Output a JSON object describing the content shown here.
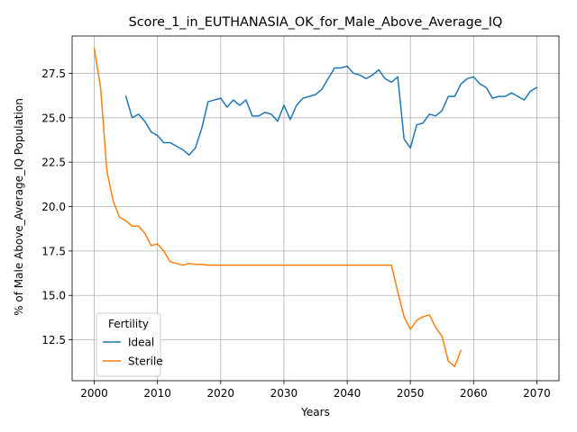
{
  "chart_data": {
    "type": "line",
    "title": "Score_1_in_EUTHANASIA_OK_for_Male_Above_Average_IQ",
    "xlabel": "Years",
    "ylabel": "% of Male Above_Average_IQ Population",
    "xlim": [
      1996.5,
      2073.5
    ],
    "ylim": [
      10.2,
      29.6
    ],
    "xticks": [
      2000,
      2010,
      2020,
      2030,
      2040,
      2050,
      2060,
      2070
    ],
    "yticks": [
      12.5,
      15.0,
      17.5,
      20.0,
      22.5,
      25.0,
      27.5
    ],
    "xtick_labels": [
      "2000",
      "2010",
      "2020",
      "2030",
      "2040",
      "2050",
      "2060",
      "2070"
    ],
    "ytick_labels": [
      "12.5",
      "15.0",
      "17.5",
      "20.0",
      "22.5",
      "25.0",
      "27.5"
    ],
    "grid": true,
    "legend": {
      "title": "Fertility",
      "placement": "lower-left"
    },
    "series": [
      {
        "name": "Ideal",
        "color": "#1f77b4",
        "x": [
          2005,
          2006,
          2007,
          2008,
          2009,
          2010,
          2011,
          2012,
          2013,
          2014,
          2015,
          2016,
          2017,
          2018,
          2019,
          2020,
          2021,
          2022,
          2023,
          2024,
          2025,
          2026,
          2027,
          2028,
          2029,
          2030,
          2031,
          2032,
          2033,
          2034,
          2035,
          2036,
          2037,
          2038,
          2039,
          2040,
          2041,
          2042,
          2043,
          2044,
          2045,
          2046,
          2047,
          2048,
          2049,
          2050,
          2051,
          2052,
          2053,
          2054,
          2055,
          2056,
          2057,
          2058,
          2059,
          2060,
          2061,
          2062,
          2063,
          2064,
          2065,
          2066,
          2067,
          2068,
          2069,
          2070
        ],
        "y": [
          26.2,
          25.0,
          25.2,
          24.8,
          24.2,
          24.0,
          23.6,
          23.6,
          23.4,
          23.2,
          22.9,
          23.3,
          24.4,
          25.9,
          26.0,
          26.1,
          25.6,
          26.0,
          25.7,
          26.0,
          25.1,
          25.1,
          25.3,
          25.2,
          24.8,
          25.7,
          24.9,
          25.7,
          26.1,
          26.2,
          26.3,
          26.6,
          27.2,
          27.8,
          27.8,
          27.9,
          27.5,
          27.4,
          27.2,
          27.4,
          27.7,
          27.2,
          27.0,
          27.3,
          23.8,
          23.3,
          24.6,
          24.7,
          25.2,
          25.1,
          25.4,
          26.2,
          26.2,
          26.9,
          27.2,
          27.3,
          26.9,
          26.7,
          26.1,
          26.2,
          26.2,
          26.4,
          26.2,
          26.0,
          26.5,
          26.7
        ]
      },
      {
        "name": "Sterile",
        "color": "#ff7f0e",
        "x": [
          2000,
          2001,
          2002,
          2003,
          2004,
          2005,
          2006,
          2007,
          2008,
          2009,
          2010,
          2011,
          2012,
          2013,
          2014,
          2015,
          2016,
          2017,
          2018,
          2019,
          2020,
          2021,
          2022,
          2023,
          2024,
          2025,
          2026,
          2027,
          2028,
          2029,
          2030,
          2031,
          2032,
          2033,
          2034,
          2035,
          2036,
          2037,
          2038,
          2039,
          2040,
          2041,
          2042,
          2043,
          2044,
          2045,
          2046,
          2047,
          2048,
          2049,
          2050,
          2051,
          2052,
          2053,
          2054,
          2055,
          2056,
          2057,
          2058
        ],
        "y": [
          28.9,
          26.7,
          22.0,
          20.3,
          19.4,
          19.2,
          18.9,
          18.9,
          18.5,
          17.8,
          17.9,
          17.5,
          16.9,
          16.8,
          16.7,
          16.8,
          16.75,
          16.75,
          16.7,
          16.7,
          16.7,
          16.7,
          16.7,
          16.7,
          16.7,
          16.7,
          16.7,
          16.7,
          16.7,
          16.7,
          16.7,
          16.7,
          16.7,
          16.7,
          16.7,
          16.7,
          16.7,
          16.7,
          16.7,
          16.7,
          16.7,
          16.7,
          16.7,
          16.7,
          16.7,
          16.7,
          16.7,
          16.7,
          15.2,
          13.8,
          13.1,
          13.6,
          13.8,
          13.9,
          13.2,
          12.7,
          11.3,
          11.0,
          11.9
        ]
      }
    ]
  }
}
